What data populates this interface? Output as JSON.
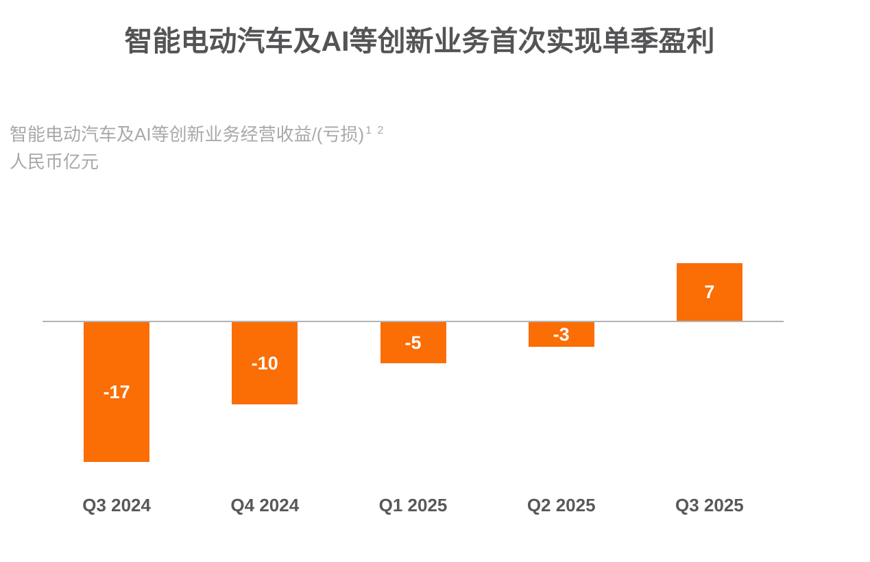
{
  "header": {
    "title": "智能电动汽车及AI等创新业务首次实现单季盈利"
  },
  "subtitle": {
    "line1": "智能电动汽车及AI等创新业务经营收益/(亏损)",
    "superscript": "1 2",
    "line2": "人民币亿元"
  },
  "chart_data": {
    "type": "bar",
    "title": "智能电动汽车及AI等创新业务首次实现单季盈利",
    "subtitle": "智能电动汽车及AI等创新业务经营收益/(亏损)1 2",
    "unit_label": "人民币亿元",
    "categories": [
      "Q3 2024",
      "Q4 2024",
      "Q1 2025",
      "Q2 2025",
      "Q3 2025"
    ],
    "values": [
      -17,
      -10,
      -5,
      -3,
      7
    ],
    "data_labels": [
      "-17",
      "-10",
      "-5",
      "-3",
      "7"
    ],
    "xlabel": "",
    "ylabel": "人民币亿元",
    "ylim": [
      -20,
      10
    ],
    "grid": false,
    "legend": "none",
    "baseline": 0,
    "colors": {
      "bar": "#fb6d05",
      "bar_label": "#ffffff",
      "axis_line": "#b3b3b3",
      "title": "#545456",
      "subtitle": "#a8a8a8",
      "tick_label": "#58585a",
      "background": "#ffffff"
    }
  }
}
